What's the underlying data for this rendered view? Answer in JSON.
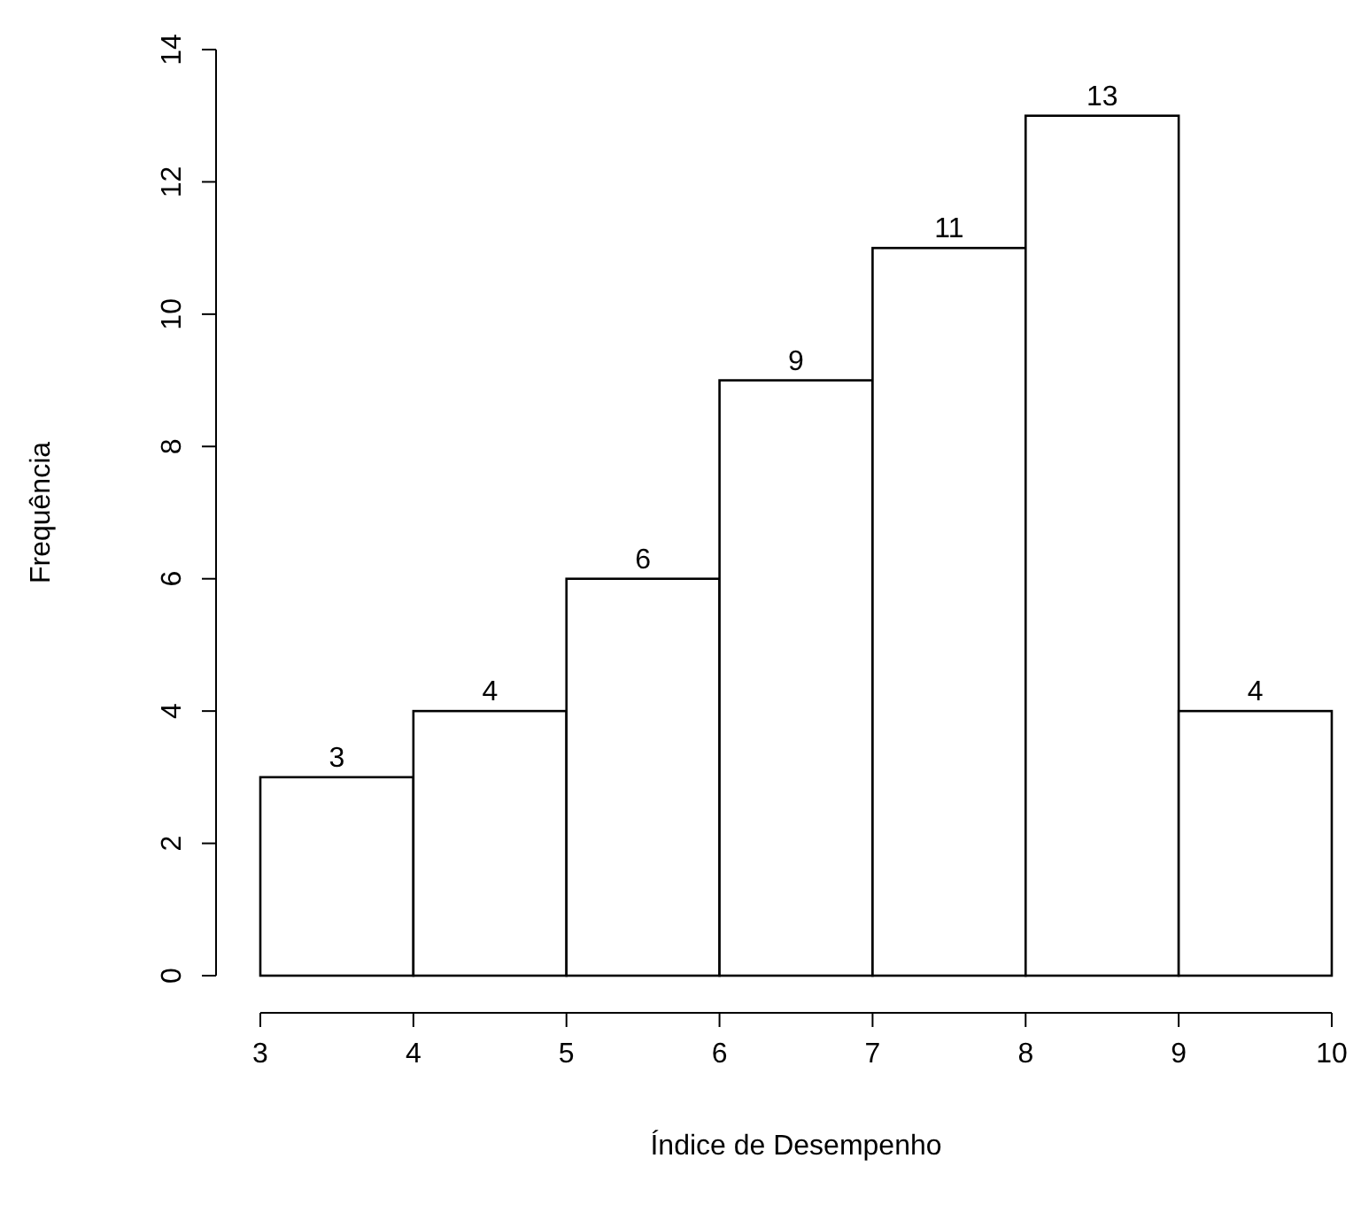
{
  "chart_data": {
    "type": "histogram",
    "xlabel": "Índice de Desempenho",
    "ylabel": "Frequência",
    "bins": [
      3,
      4,
      5,
      6,
      7,
      8,
      9,
      10
    ],
    "values": [
      3,
      4,
      6,
      9,
      11,
      13,
      4
    ],
    "color": "#ffffff",
    "xlim": [
      3,
      10
    ],
    "xticks": [
      3,
      4,
      5,
      6,
      7,
      8,
      9,
      10
    ],
    "ylim": [
      0,
      14
    ],
    "yticks": [
      0,
      2,
      4,
      6,
      8,
      10,
      12,
      14
    ],
    "data_labels": true
  }
}
